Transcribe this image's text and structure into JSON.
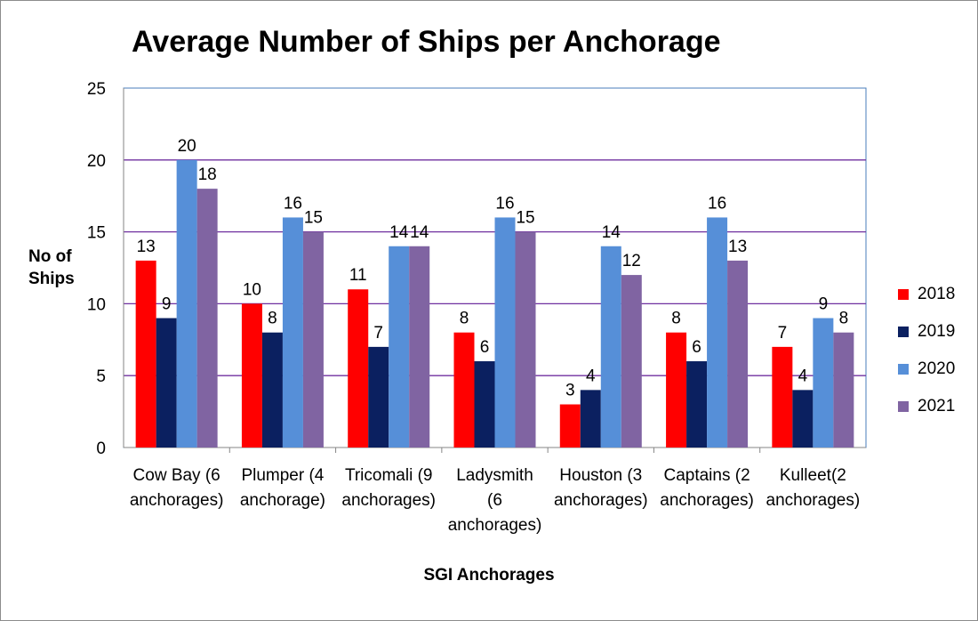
{
  "chart_data": {
    "type": "bar",
    "title": "Average Number of Ships per Anchorage",
    "ylabel_lines": [
      "No of",
      "Ships"
    ],
    "xlabel": "SGI Anchorages",
    "ylim": [
      0,
      25
    ],
    "yticks": [
      0,
      5,
      10,
      15,
      20,
      25
    ],
    "grid": true,
    "legend_position": "right",
    "categories": [
      [
        "Cow Bay (6",
        "anchorages)"
      ],
      [
        "Plumper (4",
        "anchorage)"
      ],
      [
        "Tricomali (9",
        "anchorages)"
      ],
      [
        "Ladysmith",
        "(6",
        "anchorages)"
      ],
      [
        "Houston (3",
        "anchorages)"
      ],
      [
        "Captains (2",
        "anchorages)"
      ],
      [
        "Kulleet(2",
        "anchorages)"
      ]
    ],
    "series": [
      {
        "name": "2018",
        "color": "#ff0000",
        "values": [
          13,
          10,
          11,
          8,
          3,
          8,
          7
        ]
      },
      {
        "name": "2019",
        "color": "#0b2060",
        "values": [
          9,
          8,
          7,
          6,
          4,
          6,
          4
        ]
      },
      {
        "name": "2020",
        "color": "#568fd8",
        "values": [
          20,
          16,
          14,
          16,
          14,
          16,
          9
        ]
      },
      {
        "name": "2021",
        "color": "#8064a2",
        "values": [
          18,
          15,
          14,
          15,
          12,
          13,
          8
        ]
      }
    ],
    "colors": {
      "grid": "#7030a0",
      "axis": "#868686",
      "plot_border": "#4a7ebb"
    }
  }
}
